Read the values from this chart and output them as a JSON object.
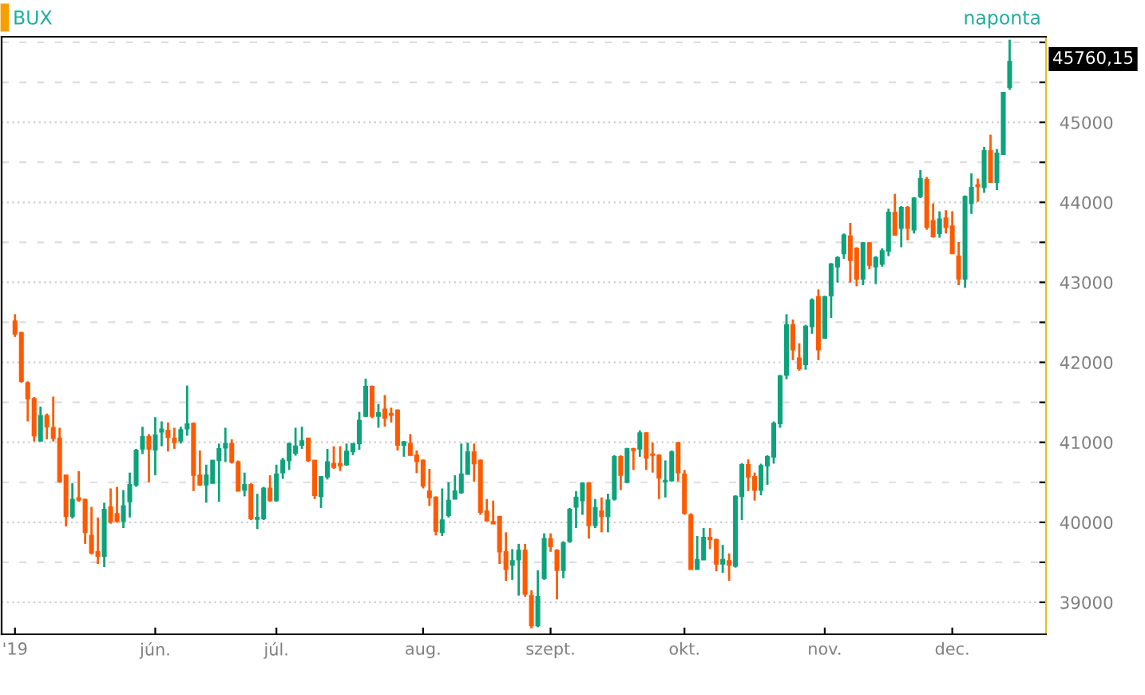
{
  "chart_data": {
    "type": "candlestick",
    "title": "BUX",
    "subtitle": "naponta",
    "categories": [
      "'19",
      null,
      null,
      null,
      null,
      null,
      null,
      null,
      null,
      null,
      null,
      null,
      null,
      null,
      null,
      null,
      null,
      null,
      null,
      null,
      null,
      null,
      "jún.",
      null,
      null,
      null,
      null,
      null,
      null,
      null,
      null,
      null,
      null,
      null,
      null,
      null,
      null,
      null,
      null,
      null,
      null,
      "júl.",
      null,
      null,
      null,
      null,
      null,
      null,
      null,
      null,
      null,
      null,
      null,
      null,
      null,
      null,
      null,
      null,
      null,
      null,
      null,
      null,
      null,
      null,
      "aug.",
      null,
      null,
      null,
      null,
      null,
      null,
      null,
      null,
      null,
      null,
      null,
      null,
      null,
      null,
      null,
      null,
      null,
      null,
      null,
      "szept.",
      null,
      null,
      null,
      null,
      null,
      null,
      null,
      null,
      null,
      null,
      null,
      null,
      null,
      null,
      null,
      null,
      null,
      null,
      null,
      null,
      "okt.",
      null,
      null,
      null,
      null,
      null,
      null,
      null,
      null,
      null,
      null,
      null,
      null,
      null,
      null,
      null,
      null,
      null,
      null,
      null,
      null,
      null,
      "nov.",
      null,
      null,
      null,
      null,
      null,
      null,
      null,
      null,
      null,
      null,
      null,
      null,
      null,
      null,
      null,
      null,
      null,
      null,
      null,
      "dec.",
      null,
      null,
      null,
      null,
      null,
      null,
      null,
      null,
      null
    ],
    "ohlc": [
      [
        42515,
        42601,
        42317,
        42357
      ],
      [
        42370,
        42383,
        41743,
        41763
      ],
      [
        41743,
        41763,
        41261,
        41545
      ],
      [
        41545,
        41565,
        41010,
        41083
      ],
      [
        41017,
        41446,
        41010,
        41334
      ],
      [
        41334,
        41360,
        41037,
        41195
      ],
      [
        41182,
        41571,
        41010,
        41050
      ],
      [
        41050,
        41182,
        40496,
        40509
      ],
      [
        40588,
        40588,
        39948,
        40073
      ],
      [
        40073,
        40489,
        40047,
        40284
      ],
      [
        40304,
        40641,
        40258,
        40278
      ],
      [
        40284,
        40298,
        39730,
        39875
      ],
      [
        39836,
        40192,
        39598,
        39618
      ],
      [
        39631,
        40060,
        39479,
        39578
      ],
      [
        39578,
        40245,
        39440,
        40159
      ],
      [
        40192,
        40423,
        39981,
        40007
      ],
      [
        40106,
        40443,
        39994,
        40014
      ],
      [
        40014,
        40403,
        39928,
        40205
      ],
      [
        40258,
        40621,
        40060,
        40469
      ],
      [
        40469,
        40918,
        40443,
        40898
      ],
      [
        40918,
        41195,
        40852,
        41070
      ],
      [
        41070,
        41103,
        40502,
        40918
      ],
      [
        40905,
        41314,
        40588,
        41090
      ],
      [
        41129,
        41261,
        40951,
        41162
      ],
      [
        41149,
        41248,
        40885,
        41063
      ],
      [
        41050,
        41182,
        40918,
        40997
      ],
      [
        41017,
        41195,
        40984,
        41156
      ],
      [
        41169,
        41710,
        41083,
        41228
      ],
      [
        41235,
        41248,
        40390,
        40588
      ],
      [
        40588,
        40898,
        40456,
        40469
      ],
      [
        40469,
        40720,
        40245,
        40588
      ],
      [
        40489,
        40773,
        40489,
        40773
      ],
      [
        40773,
        40984,
        40258,
        40918
      ],
      [
        40931,
        41182,
        40753,
        40984
      ],
      [
        40984,
        41037,
        40733,
        40753
      ],
      [
        40753,
        40773,
        40390,
        40390
      ],
      [
        40403,
        40621,
        40324,
        40469
      ],
      [
        40469,
        40489,
        40027,
        40047
      ],
      [
        40040,
        40357,
        39915,
        40060
      ],
      [
        40047,
        40443,
        40027,
        40423
      ],
      [
        40423,
        40588,
        40258,
        40271
      ],
      [
        40271,
        40720,
        40258,
        40601
      ],
      [
        40621,
        40806,
        40542,
        40773
      ],
      [
        40773,
        40997,
        40654,
        40984
      ],
      [
        40865,
        41182,
        40832,
        40951
      ],
      [
        40964,
        41195,
        40918,
        41017
      ],
      [
        41050,
        41050,
        40753,
        40773
      ],
      [
        40773,
        40773,
        40291,
        40337
      ],
      [
        40324,
        40568,
        40179,
        40568
      ],
      [
        40568,
        40918,
        40535,
        40753
      ],
      [
        40733,
        40951,
        40667,
        40687
      ],
      [
        40733,
        40951,
        40641,
        40707
      ],
      [
        40720,
        40984,
        40707,
        40885
      ],
      [
        40885,
        40984,
        40839,
        40984
      ],
      [
        40984,
        41380,
        40905,
        41274
      ],
      [
        41327,
        41796,
        41314,
        41697
      ],
      [
        41697,
        41710,
        41301,
        41327
      ],
      [
        41327,
        41479,
        41182,
        41367
      ],
      [
        41413,
        41591,
        41195,
        41301
      ],
      [
        41360,
        41433,
        41248,
        41340
      ],
      [
        41400,
        41413,
        40898,
        40964
      ],
      [
        40964,
        41017,
        40819,
        41004
      ],
      [
        40984,
        41103,
        40839,
        40839
      ],
      [
        40839,
        40898,
        40614,
        40760
      ],
      [
        40773,
        40786,
        40423,
        40456
      ],
      [
        40390,
        40667,
        40205,
        40311
      ],
      [
        40311,
        40324,
        39836,
        39888
      ],
      [
        39875,
        40423,
        39829,
        40027
      ],
      [
        40086,
        40502,
        40060,
        40271
      ],
      [
        40291,
        40588,
        40291,
        40390
      ],
      [
        40370,
        40984,
        40357,
        40601
      ],
      [
        40601,
        40997,
        40601,
        40878
      ],
      [
        40878,
        40984,
        40509,
        40733
      ],
      [
        40773,
        40786,
        40093,
        40126
      ],
      [
        40139,
        40291,
        40014,
        40020
      ],
      [
        40007,
        40271,
        39981,
        39981
      ],
      [
        40073,
        40073,
        39479,
        39631
      ],
      [
        39631,
        39875,
        39268,
        39413
      ],
      [
        39466,
        39664,
        39281,
        39519
      ],
      [
        39532,
        39730,
        39083,
        39651
      ],
      [
        39651,
        39730,
        39070,
        39103
      ],
      [
        39083,
        39149,
        38674,
        38707
      ],
      [
        38707,
        39400,
        38687,
        39070
      ],
      [
        39301,
        39862,
        39281,
        39796
      ],
      [
        39796,
        39862,
        39631,
        39697
      ],
      [
        39651,
        39664,
        39037,
        39400
      ],
      [
        39400,
        39763,
        39301,
        39743
      ],
      [
        39763,
        40179,
        39743,
        40159
      ],
      [
        40192,
        40390,
        39928,
        40311
      ],
      [
        40271,
        40502,
        40093,
        40489
      ],
      [
        40489,
        40502,
        39796,
        39961
      ],
      [
        39961,
        40291,
        39928,
        40179
      ],
      [
        40139,
        40311,
        39875,
        40073
      ],
      [
        40073,
        40357,
        39875,
        40278
      ],
      [
        40291,
        40839,
        40271,
        40819
      ],
      [
        40819,
        40839,
        40403,
        40588
      ],
      [
        40502,
        40931,
        40489,
        40918
      ],
      [
        40918,
        40931,
        40654,
        40898
      ],
      [
        40918,
        41149,
        40819,
        41116
      ],
      [
        41116,
        41129,
        40654,
        40806
      ],
      [
        40852,
        40997,
        40621,
        40839
      ],
      [
        40839,
        40852,
        40291,
        40555
      ],
      [
        40509,
        40773,
        40311,
        40522
      ],
      [
        40522,
        40898,
        40509,
        40878
      ],
      [
        40997,
        40997,
        40509,
        40621
      ],
      [
        40601,
        40654,
        40093,
        40113
      ],
      [
        40093,
        40113,
        39413,
        39413
      ],
      [
        39413,
        39829,
        39413,
        39532
      ],
      [
        39532,
        39928,
        39532,
        39809
      ],
      [
        39809,
        39928,
        39664,
        39783
      ],
      [
        39783,
        39796,
        39387,
        39479
      ],
      [
        39479,
        39717,
        39367,
        39532
      ],
      [
        39519,
        39611,
        39268,
        39466
      ],
      [
        39453,
        40337,
        39433,
        40324
      ],
      [
        40324,
        40740,
        40027,
        40720
      ],
      [
        40720,
        40786,
        40390,
        40568
      ],
      [
        40568,
        40621,
        40271,
        40403
      ],
      [
        40403,
        40733,
        40337,
        40707
      ],
      [
        40707,
        40839,
        40469,
        40819
      ],
      [
        40819,
        41261,
        40733,
        41235
      ],
      [
        41235,
        41842,
        41182,
        41829
      ],
      [
        41842,
        42601,
        41789,
        42469
      ],
      [
        42469,
        42535,
        42027,
        42159
      ],
      [
        42053,
        42238,
        41895,
        41921
      ],
      [
        41974,
        42469,
        41908,
        42449
      ],
      [
        42449,
        42799,
        42357,
        42779
      ],
      [
        42819,
        42911,
        42027,
        42159
      ],
      [
        42304,
        42832,
        42291,
        42819
      ],
      [
        42832,
        43241,
        42555,
        43228
      ],
      [
        43195,
        43327,
        42997,
        43307
      ],
      [
        43360,
        43611,
        43294,
        43591
      ],
      [
        43578,
        43743,
        42997,
        43274
      ],
      [
        43426,
        43439,
        42951,
        43043
      ],
      [
        43043,
        43505,
        42964,
        43492
      ],
      [
        43492,
        43505,
        43162,
        43215
      ],
      [
        43195,
        43327,
        42977,
        43307
      ],
      [
        43228,
        43426,
        43195,
        43393
      ],
      [
        43393,
        43921,
        43327,
        43875
      ],
      [
        43875,
        44106,
        43591,
        43591
      ],
      [
        43677,
        43954,
        43439,
        43934
      ],
      [
        43934,
        43954,
        43525,
        43677
      ],
      [
        43657,
        44066,
        43611,
        44053
      ],
      [
        44073,
        44403,
        44053,
        44297
      ],
      [
        44284,
        44317,
        43657,
        43690
      ],
      [
        43769,
        43987,
        43558,
        43571
      ],
      [
        43611,
        43888,
        43558,
        43789
      ],
      [
        43802,
        43901,
        43611,
        43690
      ],
      [
        43703,
        43888,
        43360,
        43360
      ],
      [
        43327,
        43505,
        42964,
        43043
      ],
      [
        43043,
        44086,
        42931,
        44073
      ],
      [
        43987,
        44363,
        43855,
        44185
      ],
      [
        44218,
        44297,
        44007,
        44198
      ],
      [
        44185,
        44693,
        44119,
        44647
      ],
      [
        44647,
        44845,
        44251,
        44251
      ],
      [
        44251,
        44667,
        44152,
        44614
      ],
      [
        44601,
        45373,
        44601,
        45373
      ],
      [
        45439,
        46033,
        45406,
        45760
      ]
    ],
    "colors": [
      "#ff5a00",
      "#ff5a00",
      "#ff5a00",
      "#ff5a00",
      "#0ca37c",
      "#ff5a00",
      "#ff5a00",
      "#ff5a00",
      "#ff5a00",
      "#0ca37c",
      "#ff5a00",
      "#ff5a00",
      "#ff5a00",
      "#ff5a00",
      "#0ca37c",
      "#ff5a00",
      "#ff5a00",
      "#0ca37c",
      "#0ca37c",
      "#0ca37c",
      "#0ca37c",
      "#ff5a00",
      "#0ca37c",
      "#0ca37c",
      "#ff5a00",
      "#ff5a00",
      "#0ca37c",
      "#0ca37c",
      "#ff5a00",
      "#ff5a00",
      "#0ca37c",
      "#0ca37c",
      "#0ca37c",
      "#0ca37c",
      "#ff5a00",
      "#ff5a00",
      "#0ca37c",
      "#ff5a00",
      "#0ca37c",
      "#0ca37c",
      "#ff5a00",
      "#0ca37c",
      "#0ca37c",
      "#0ca37c",
      "#0ca37c",
      "#0ca37c",
      "#ff5a00",
      "#ff5a00",
      "#0ca37c",
      "#0ca37c",
      "#ff5a00",
      "#ff5a00",
      "#0ca37c",
      "#0ca37c",
      "#0ca37c",
      "#0ca37c",
      "#ff5a00",
      "#0ca37c",
      "#ff5a00",
      "#ff5a00",
      "#ff5a00",
      "#0ca37c",
      "#ff5a00",
      "#ff5a00",
      "#ff5a00",
      "#ff5a00",
      "#ff5a00",
      "#0ca37c",
      "#0ca37c",
      "#0ca37c",
      "#0ca37c",
      "#0ca37c",
      "#ff5a00",
      "#ff5a00",
      "#ff5a00",
      "#ff5a00",
      "#ff5a00",
      "#ff5a00",
      "#0ca37c",
      "#0ca37c",
      "#ff5a00",
      "#ff5a00",
      "#0ca37c",
      "#0ca37c",
      "#ff5a00",
      "#ff5a00",
      "#0ca37c",
      "#0ca37c",
      "#0ca37c",
      "#0ca37c",
      "#ff5a00",
      "#0ca37c",
      "#ff5a00",
      "#0ca37c",
      "#0ca37c",
      "#ff5a00",
      "#0ca37c",
      "#ff5a00",
      "#0ca37c",
      "#ff5a00",
      "#ff5a00",
      "#ff5a00",
      "#0ca37c",
      "#0ca37c",
      "#ff5a00",
      "#ff5a00",
      "#ff5a00",
      "#0ca37c",
      "#0ca37c",
      "#ff5a00",
      "#ff5a00",
      "#0ca37c",
      "#ff5a00",
      "#0ca37c",
      "#0ca37c",
      "#ff5a00",
      "#ff5a00",
      "#0ca37c",
      "#0ca37c",
      "#0ca37c",
      "#0ca37c",
      "#0ca37c",
      "#ff5a00",
      "#ff5a00",
      "#0ca37c",
      "#0ca37c",
      "#ff5a00",
      "#0ca37c",
      "#0ca37c",
      "#0ca37c",
      "#0ca37c",
      "#ff5a00",
      "#ff5a00",
      "#0ca37c",
      "#ff5a00",
      "#0ca37c",
      "#0ca37c",
      "#0ca37c",
      "#ff5a00",
      "#0ca37c",
      "#ff5a00",
      "#0ca37c",
      "#0ca37c",
      "#ff5a00",
      "#ff5a00",
      "#0ca37c",
      "#ff5a00",
      "#ff5a00",
      "#ff5a00",
      "#0ca37c",
      "#0ca37c",
      "#ff5a00",
      "#0ca37c",
      "#ff5a00",
      "#0ca37c",
      "#0ca37c",
      "#0ca37c"
    ],
    "ylim": [
      38600,
      46070
    ],
    "yticks": [
      39000,
      {
        "value": 39500,
        "label": null
      },
      40000,
      {
        "value": 40500,
        "label": null
      },
      41000,
      {
        "value": 41500,
        "label": null
      },
      42000,
      {
        "value": 42500,
        "label": null
      },
      43000,
      {
        "value": 43500,
        "label": null
      },
      44000,
      {
        "value": 44500,
        "label": null
      },
      45000,
      {
        "value": 45500,
        "label": null
      },
      {
        "value": 46000,
        "label": null
      }
    ],
    "grid": "y",
    "annotations": [
      "45760,15"
    ]
  }
}
